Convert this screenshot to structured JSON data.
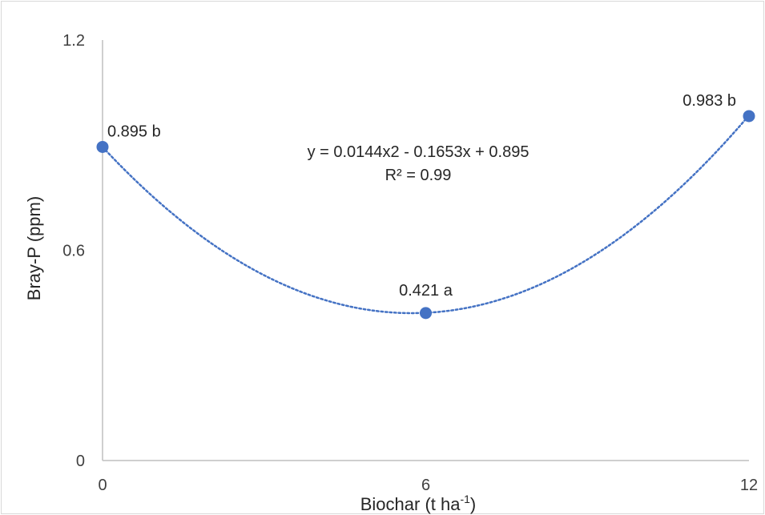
{
  "chart_data": {
    "type": "scatter",
    "title": "",
    "xlabel": "Biochar (t ha",
    "xlabel_sup": "-1",
    "xlabel_close": ")",
    "ylabel": "Bray-P (ppm)",
    "xlim": [
      0,
      12
    ],
    "ylim": [
      0,
      1.2
    ],
    "x_ticks": [
      "0",
      "6",
      "12"
    ],
    "y_ticks": [
      "0",
      "0.6",
      "1.2"
    ],
    "grid": false,
    "legend": "none",
    "series": [
      {
        "x": [
          0,
          6,
          12
        ],
        "y": [
          0.895,
          0.421,
          0.983
        ],
        "labels": [
          "0.895 b",
          "0.421 a",
          "0.983 b"
        ],
        "color": "#4472C4"
      }
    ],
    "trendline": {
      "type": "polynomial",
      "order": 2,
      "coefficients": [
        0.0144,
        -0.1653,
        0.895
      ],
      "style": "dotted",
      "color": "#4472C4",
      "equation": "y = 0.0144x2 - 0.1653x + 0.895",
      "r_squared": "R² = 0.99"
    }
  }
}
